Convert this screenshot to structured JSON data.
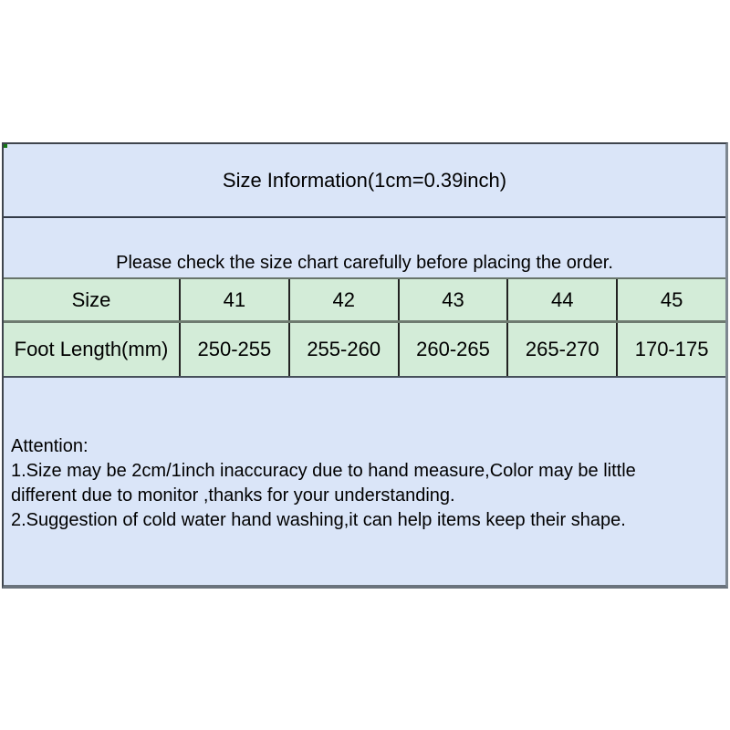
{
  "size_chart": {
    "title": "Size Information(1cm=0.39inch)",
    "note": "Please check the size chart carefully before placing the order.",
    "header": [
      "Size",
      "41",
      "42",
      "43",
      "44",
      "45"
    ],
    "foot_row": [
      "Foot Length(mm)",
      "250-255",
      "255-260",
      "260-265",
      "265-270",
      "170-175"
    ]
  },
  "attention": {
    "heading": "Attention:",
    "lines": [
      "1.Size may be 2cm/1inch inaccuracy due to hand measure,Color may be little",
      "different due to monitor ,thanks for your understanding.",
      "2.Suggestion of cold water hand washing,it can help items keep their shape."
    ]
  },
  "colors": {
    "panel_blue": "#dae5f8",
    "table_green": "#d3ecd8"
  }
}
